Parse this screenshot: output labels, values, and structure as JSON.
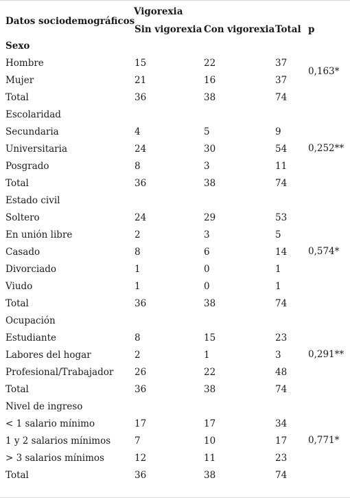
{
  "header": {
    "row_label": "Datos sociodemográficos",
    "group": "Vigorexia",
    "col_sin": "Sin vigorexia",
    "col_con": "Con vigorexia",
    "col_total": "Total",
    "col_p": "p"
  },
  "section_sexo": "Sexo",
  "rows": [
    {
      "label": "Hombre",
      "sin": "15",
      "con": "22",
      "total": "37"
    },
    {
      "label": "Mujer",
      "sin": "21",
      "con": "16",
      "total": "37"
    },
    {
      "label": "Total",
      "sin": "36",
      "con": "38",
      "total": "74"
    },
    {
      "label": "Escolaridad"
    },
    {
      "label": "Secundaria",
      "sin": "4",
      "con": "5",
      "total": "9"
    },
    {
      "label": "Universitaria",
      "sin": "24",
      "con": "30",
      "total": "54"
    },
    {
      "label": "Posgrado",
      "sin": "8",
      "con": "3",
      "total": "11"
    },
    {
      "label": "Total",
      "sin": "36",
      "con": "38",
      "total": "74"
    },
    {
      "label": "Estado civil"
    },
    {
      "label": "Soltero",
      "sin": "24",
      "con": "29",
      "total": "53"
    },
    {
      "label": "En unión libre",
      "sin": "2",
      "con": "3",
      "total": "5"
    },
    {
      "label": "Casado",
      "sin": "8",
      "con": "6",
      "total": "14"
    },
    {
      "label": "Divorciado",
      "sin": "1",
      "con": "0",
      "total": "1"
    },
    {
      "label": "Viudo",
      "sin": "1",
      "con": "0",
      "total": "1"
    },
    {
      "label": "Total",
      "sin": "36",
      "con": "38",
      "total": "74"
    },
    {
      "label": "Ocupación"
    },
    {
      "label": "Estudiante",
      "sin": "8",
      "con": "15",
      "total": "23"
    },
    {
      "label": "Labores del hogar",
      "sin": "2",
      "con": "1",
      "total": "3"
    },
    {
      "label": "Profesional/Trabajador",
      "sin": "26",
      "con": "22",
      "total": "48"
    },
    {
      "label": "Total",
      "sin": "36",
      "con": "38",
      "total": "74"
    },
    {
      "label": "Nivel de ingreso"
    },
    {
      "label": "< 1 salario mínimo",
      "sin": "17",
      "con": "17",
      "total": "34"
    },
    {
      "label": "1 y 2 salarios mínimos",
      "sin": "7",
      "con": "10",
      "total": "17"
    },
    {
      "label": "> 3 salarios mínimos",
      "sin": "12",
      "con": "11",
      "total": "23"
    },
    {
      "label": "Total",
      "sin": "36",
      "con": "38",
      "total": "74"
    }
  ],
  "p_values": {
    "sexo": "0,163*",
    "escolaridad": "0,252**",
    "estado_civil": "0,574*",
    "ocupacion": "0,291**",
    "ingreso": "0,771*"
  }
}
